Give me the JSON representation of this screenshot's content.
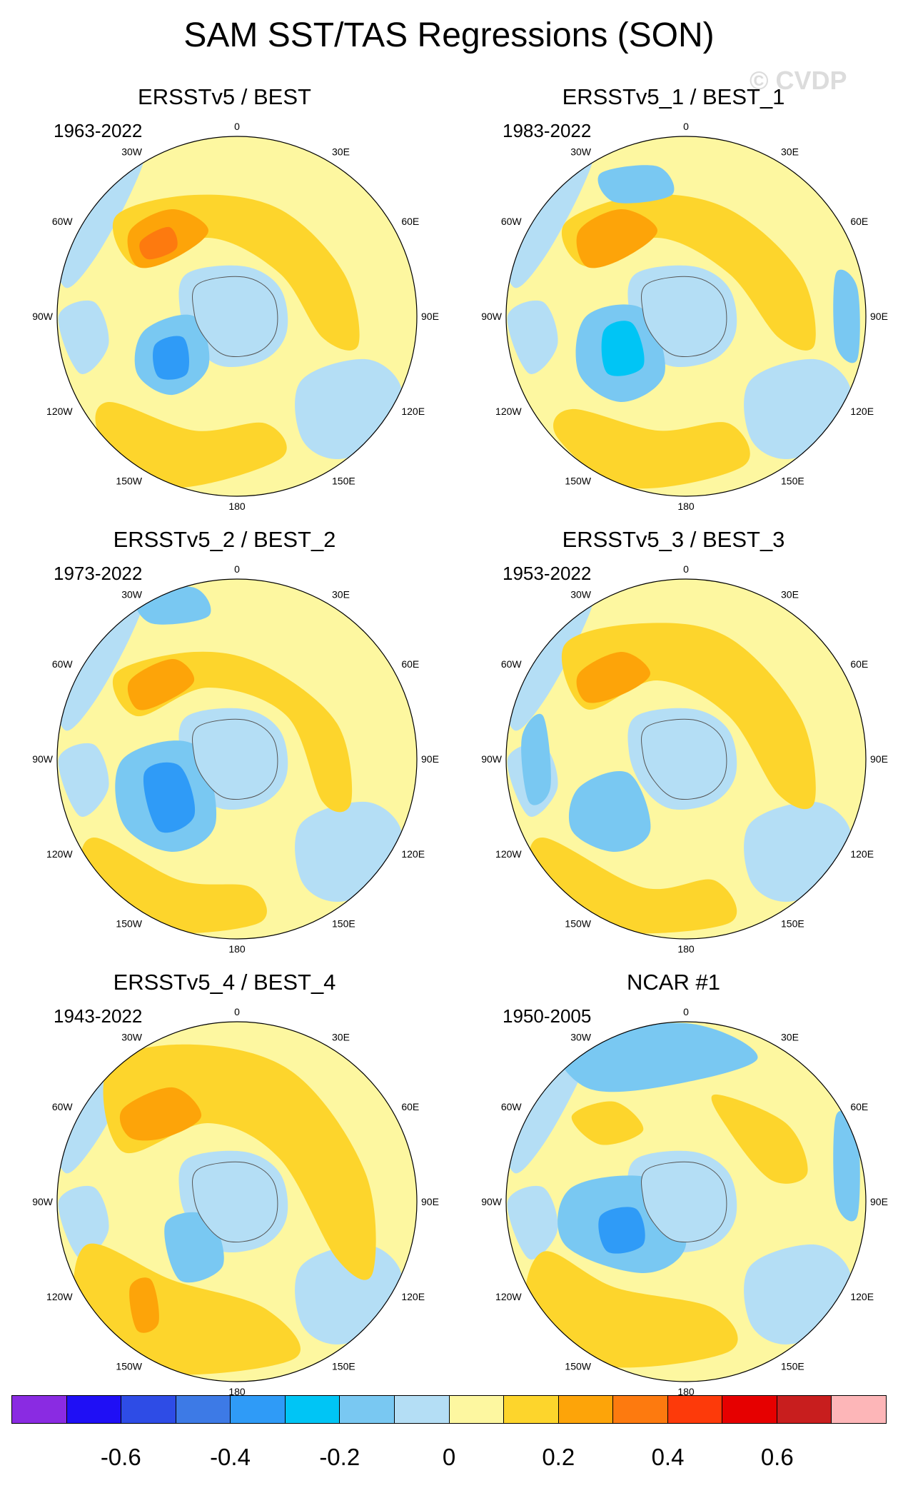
{
  "title": "SAM SST/TAS Regressions (SON)",
  "watermark": "© CVDP",
  "lon_labels": [
    "0",
    "30E",
    "60E",
    "90E",
    "120E",
    "150E",
    "180",
    "150W",
    "120W",
    "90W",
    "60W",
    "30W"
  ],
  "panels": [
    {
      "title": "ERSSTv5 / BEST",
      "years": "1963-2022"
    },
    {
      "title": "ERSSTv5_1 / BEST_1",
      "years": "1983-2022"
    },
    {
      "title": "ERSSTv5_2 / BEST_2",
      "years": "1973-2022"
    },
    {
      "title": "ERSSTv5_3 / BEST_3",
      "years": "1953-2022"
    },
    {
      "title": "ERSSTv5_4 / BEST_4",
      "years": "1943-2022"
    },
    {
      "title": "NCAR #1",
      "years": "1950-2005"
    }
  ],
  "colorbar": {
    "colors": [
      "#8a2be2",
      "#1f0ff5",
      "#2e4ce6",
      "#3d7ae6",
      "#2f9bf7",
      "#00c5f5",
      "#79c8f2",
      "#b4def5",
      "#fdf7a0",
      "#fdd52c",
      "#fda409",
      "#fd7a0f",
      "#fd3a0a",
      "#e60000",
      "#c81e1e",
      "#fdb6b8"
    ],
    "labels": [
      "-0.6",
      "-0.4",
      "-0.2",
      "0",
      "0.2",
      "0.4",
      "0.6"
    ],
    "label_values": [
      -0.6,
      -0.4,
      -0.2,
      0,
      0.2,
      0.4,
      0.6
    ],
    "range": [
      -0.8,
      0.8
    ]
  },
  "colors": {
    "ocean_neg": "#b4def5",
    "ocean_pos": "#fdf7a0",
    "warm": "#fdd52c",
    "warmer": "#fda409",
    "hot": "#fd7a0f",
    "cool": "#79c8f2",
    "cooler": "#2f9bf7",
    "coldest": "#00c5f5"
  }
}
